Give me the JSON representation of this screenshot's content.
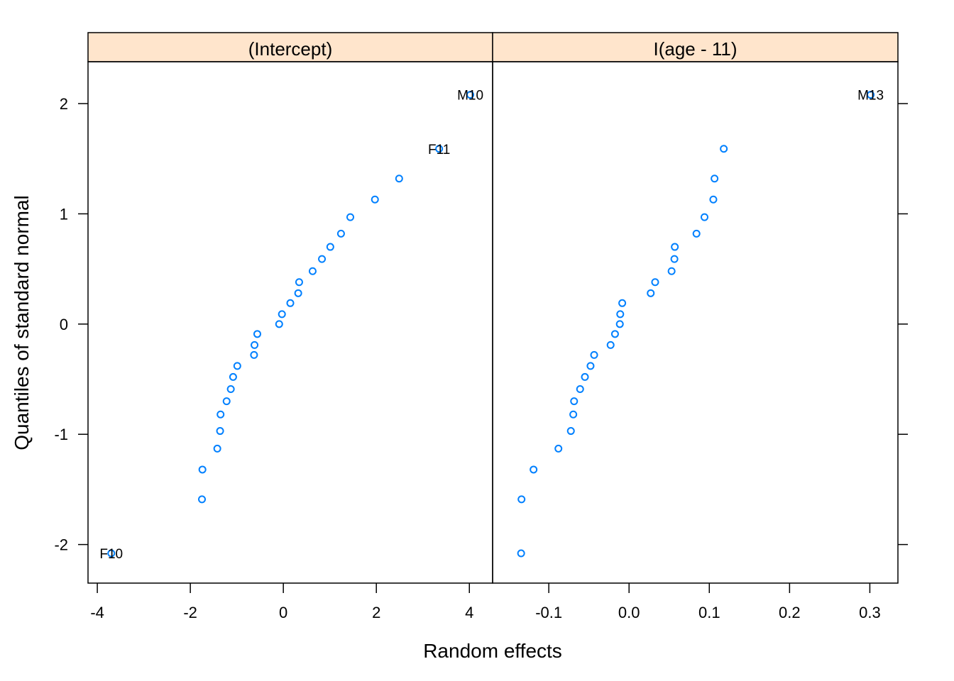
{
  "chart_data": {
    "type": "scatter",
    "xlabel": "Random effects",
    "ylabel": "Quantiles of standard normal",
    "colors": {
      "points": "#0080ff",
      "strip": "#ffe5cc",
      "axis": "#000000"
    },
    "grid": false,
    "ylim": [
      -2.35,
      2.38
    ],
    "yticks": [
      -2,
      -1,
      0,
      1,
      2
    ],
    "ytick_labels": [
      "-2",
      "-1",
      "0",
      "1",
      "2"
    ],
    "panels": [
      {
        "strip_label": "(Intercept)",
        "xlim": [
          -4.2,
          4.5
        ],
        "xticks": [
          -4,
          -2,
          0,
          2,
          4
        ],
        "xtick_labels": [
          "-4",
          "-2",
          "0",
          "2",
          "4"
        ],
        "points": [
          {
            "x": -3.7,
            "y": -2.08,
            "label": "F10"
          },
          {
            "x": -1.75,
            "y": -1.59
          },
          {
            "x": -1.74,
            "y": -1.32
          },
          {
            "x": -1.42,
            "y": -1.13
          },
          {
            "x": -1.36,
            "y": -0.97
          },
          {
            "x": -1.35,
            "y": -0.82
          },
          {
            "x": -1.22,
            "y": -0.7
          },
          {
            "x": -1.13,
            "y": -0.59
          },
          {
            "x": -1.08,
            "y": -0.48
          },
          {
            "x": -0.99,
            "y": -0.38
          },
          {
            "x": -0.63,
            "y": -0.28
          },
          {
            "x": -0.62,
            "y": -0.19
          },
          {
            "x": -0.56,
            "y": -0.09
          },
          {
            "x": -0.09,
            "y": 0.0
          },
          {
            "x": -0.03,
            "y": 0.09
          },
          {
            "x": 0.15,
            "y": 0.19
          },
          {
            "x": 0.32,
            "y": 0.28
          },
          {
            "x": 0.34,
            "y": 0.38
          },
          {
            "x": 0.63,
            "y": 0.48
          },
          {
            "x": 0.83,
            "y": 0.59
          },
          {
            "x": 1.01,
            "y": 0.7
          },
          {
            "x": 1.24,
            "y": 0.82
          },
          {
            "x": 1.44,
            "y": 0.97
          },
          {
            "x": 1.97,
            "y": 1.13
          },
          {
            "x": 2.49,
            "y": 1.32
          },
          {
            "x": 3.35,
            "y": 1.59,
            "label": "F11"
          },
          {
            "x": 4.02,
            "y": 2.08,
            "label": "M10"
          }
        ]
      },
      {
        "strip_label": "I(age - 11)",
        "xlim": [
          -0.17,
          0.335
        ],
        "xticks": [
          -0.1,
          0.0,
          0.1,
          0.2,
          0.3
        ],
        "xtick_labels": [
          "-0.1",
          "0.0",
          "0.1",
          "0.2",
          "0.3"
        ],
        "points": [
          {
            "x": -0.1345,
            "y": -2.08
          },
          {
            "x": -0.134,
            "y": -1.59
          },
          {
            "x": -0.119,
            "y": -1.32
          },
          {
            "x": -0.088,
            "y": -1.13
          },
          {
            "x": -0.0725,
            "y": -0.97
          },
          {
            "x": -0.0695,
            "y": -0.82
          },
          {
            "x": -0.0685,
            "y": -0.7
          },
          {
            "x": -0.061,
            "y": -0.59
          },
          {
            "x": -0.055,
            "y": -0.48
          },
          {
            "x": -0.048,
            "y": -0.38
          },
          {
            "x": -0.0435,
            "y": -0.28
          },
          {
            "x": -0.023,
            "y": -0.19
          },
          {
            "x": -0.0175,
            "y": -0.09
          },
          {
            "x": -0.0115,
            "y": 0.0
          },
          {
            "x": -0.011,
            "y": 0.09
          },
          {
            "x": -0.0085,
            "y": 0.19
          },
          {
            "x": 0.027,
            "y": 0.28
          },
          {
            "x": 0.0325,
            "y": 0.38
          },
          {
            "x": 0.053,
            "y": 0.48
          },
          {
            "x": 0.0565,
            "y": 0.59
          },
          {
            "x": 0.057,
            "y": 0.7
          },
          {
            "x": 0.084,
            "y": 0.82
          },
          {
            "x": 0.094,
            "y": 0.97
          },
          {
            "x": 0.105,
            "y": 1.13
          },
          {
            "x": 0.1065,
            "y": 1.32
          },
          {
            "x": 0.118,
            "y": 1.59
          },
          {
            "x": 0.301,
            "y": 2.08,
            "label": "M13"
          }
        ]
      }
    ]
  }
}
